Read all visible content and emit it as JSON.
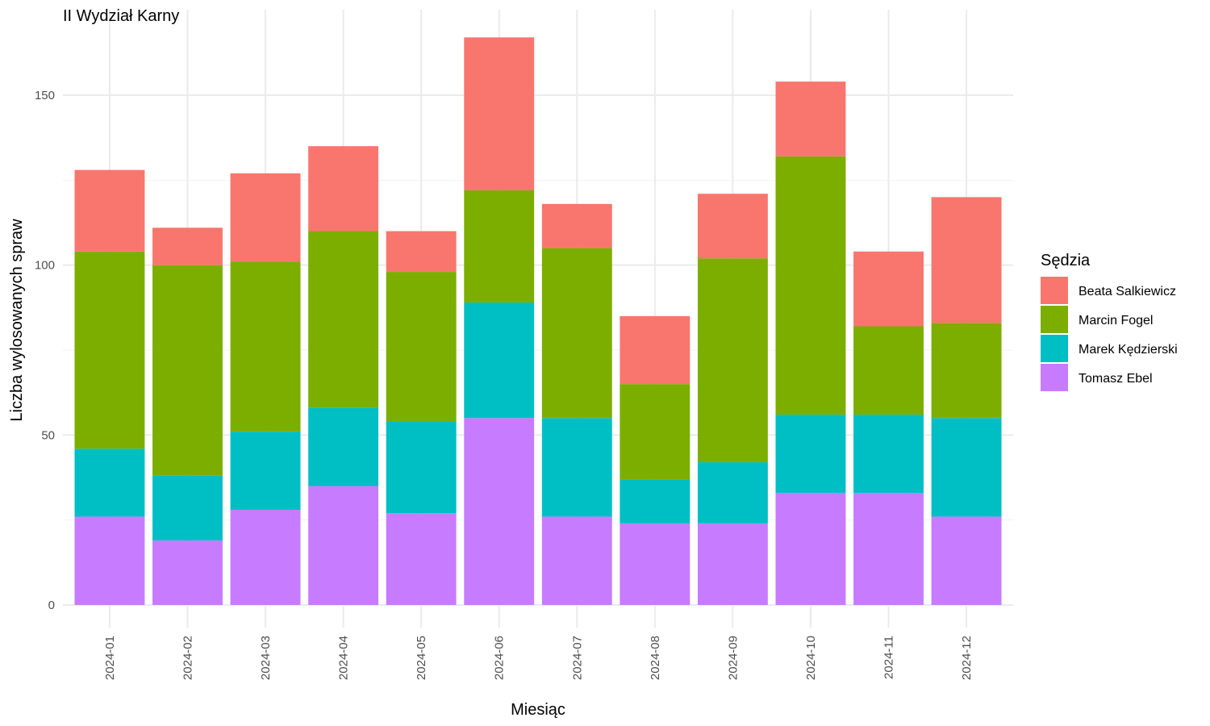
{
  "chart_data": {
    "type": "bar",
    "stacked": true,
    "title": "II Wydział Karny",
    "xlabel": "Miesiąc",
    "ylabel": "Liczba wylosowanych spraw",
    "ylim": [
      0,
      170
    ],
    "yticks": [
      0,
      50,
      100,
      150
    ],
    "grid": true,
    "legend_title": "Sędzia",
    "legend_position": "right",
    "categories": [
      "2024-01",
      "2024-02",
      "2024-03",
      "2024-04",
      "2024-05",
      "2024-06",
      "2024-07",
      "2024-08",
      "2024-09",
      "2024-10",
      "2024-11",
      "2024-12"
    ],
    "series": [
      {
        "name": "Tomasz Ebel",
        "color": "#C77CFF",
        "values": [
          26,
          19,
          28,
          35,
          27,
          55,
          26,
          24,
          24,
          33,
          33,
          26
        ]
      },
      {
        "name": "Marek Kędzierski",
        "color": "#00BFC4",
        "values": [
          20,
          19,
          23,
          23,
          27,
          34,
          29,
          13,
          18,
          23,
          23,
          29
        ]
      },
      {
        "name": "Marcin Fogel",
        "color": "#7CAE00",
        "values": [
          58,
          62,
          50,
          52,
          44,
          33,
          50,
          28,
          60,
          76,
          26,
          28
        ]
      },
      {
        "name": "Beata Salkiewicz",
        "color": "#F8766D",
        "values": [
          24,
          11,
          26,
          25,
          12,
          45,
          13,
          20,
          19,
          22,
          22,
          37
        ]
      }
    ],
    "legend_order": [
      "Beata Salkiewicz",
      "Marcin Fogel",
      "Marek Kędzierski",
      "Tomasz Ebel"
    ]
  }
}
